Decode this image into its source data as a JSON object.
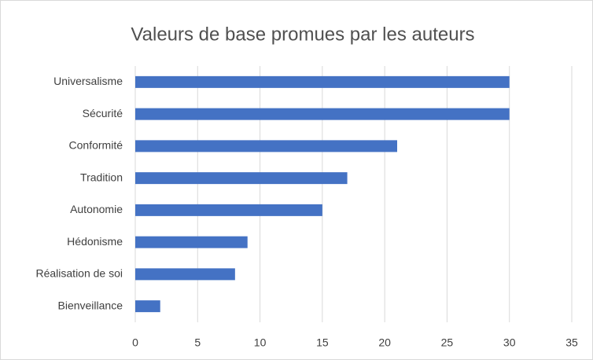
{
  "chart_data": {
    "type": "bar",
    "orientation": "horizontal",
    "title": "Valeurs de base promues par les auteurs",
    "categories": [
      "Universalisme",
      "Sécurité",
      "Conformité",
      "Tradition",
      "Autonomie",
      "Hédonisme",
      "Réalisation de soi",
      "Bienveillance"
    ],
    "values": [
      30,
      30,
      21,
      17,
      15,
      9,
      8,
      2
    ],
    "color": "#4472c4",
    "xlim": [
      0,
      35
    ],
    "xticks": [
      0,
      5,
      10,
      15,
      20,
      25,
      30,
      35
    ],
    "grid": true
  }
}
